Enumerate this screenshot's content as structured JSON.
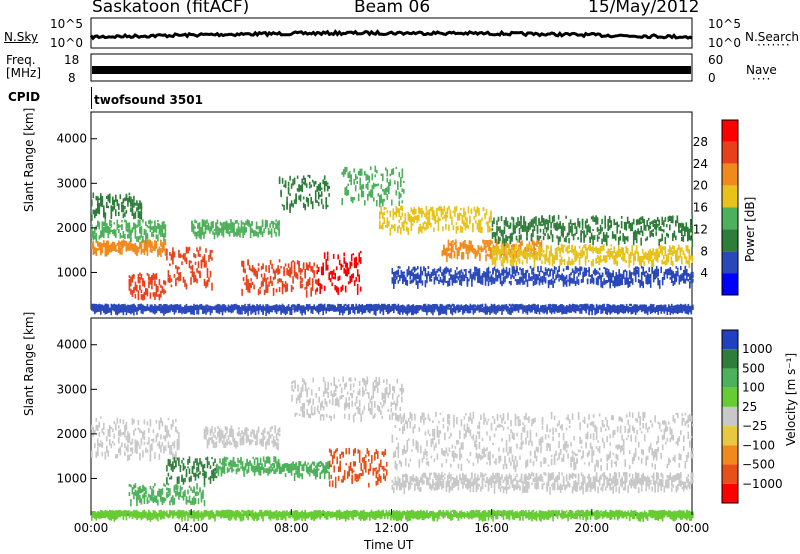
{
  "header": {
    "station": "Saskatoon (fitACF)",
    "beam": "Beam 06",
    "date": "15/May/2012"
  },
  "noise_panel": {
    "left_label": "N.Sky",
    "left_ticks": [
      "10^5",
      "10^0"
    ],
    "right_label": "N.Search",
    "right_ticks": [
      "10^5",
      "10^0"
    ]
  },
  "freq_panel": {
    "left_label_1": "Freq.",
    "left_label_2": "[MHz]",
    "left_ticks": [
      "18",
      "8"
    ],
    "right_label": "Nave",
    "right_ticks": [
      "60",
      "0"
    ]
  },
  "cpid": {
    "label": "CPID",
    "value": "twofsound 3501"
  },
  "chart_data": [
    {
      "type": "heatmap",
      "quantity": "Power",
      "ylabel": "Slant Range [km]",
      "ylim": [
        180,
        4600
      ],
      "yticks": [
        "1000",
        "2000",
        "3000",
        "4000"
      ],
      "xlabel": "Time UT",
      "xlim": [
        0,
        24
      ],
      "colorbar_label": "Power [dB]",
      "colorbar_ticks": [
        "4",
        "8",
        "12",
        "16",
        "20",
        "24",
        "28"
      ],
      "colorbar_range": [
        0,
        30
      ],
      "colors": [
        "#0000ff",
        "#2a48b8",
        "#2f7d3a",
        "#4db05a",
        "#e6c21a",
        "#f08a1c",
        "#e8401a",
        "#ff0000"
      ],
      "bands": [
        {
          "t0": 0.0,
          "t1": 3.0,
          "r0": 1500,
          "r1": 1750,
          "v": 20
        },
        {
          "t0": 0.0,
          "t1": 3.0,
          "r0": 1800,
          "r1": 2200,
          "v": 12
        },
        {
          "t0": 0.0,
          "t1": 2.0,
          "r0": 2300,
          "r1": 2800,
          "v": 10
        },
        {
          "t0": 1.5,
          "t1": 3.0,
          "r0": 500,
          "r1": 1000,
          "v": 26
        },
        {
          "t0": 3.0,
          "t1": 4.8,
          "r0": 700,
          "r1": 1600,
          "v": 26
        },
        {
          "t0": 4.0,
          "t1": 7.5,
          "r0": 1900,
          "r1": 2200,
          "v": 12
        },
        {
          "t0": 6.0,
          "t1": 9.0,
          "r0": 600,
          "r1": 1300,
          "v": 26
        },
        {
          "t0": 9.0,
          "t1": 10.8,
          "r0": 650,
          "r1": 1500,
          "v": 28
        },
        {
          "t0": 7.5,
          "t1": 9.5,
          "r0": 2500,
          "r1": 3200,
          "v": 10
        },
        {
          "t0": 10.0,
          "t1": 12.5,
          "r0": 2600,
          "r1": 3400,
          "v": 12
        },
        {
          "t0": 11.5,
          "t1": 16.0,
          "r0": 2000,
          "r1": 2500,
          "v": 16
        },
        {
          "t0": 14.0,
          "t1": 18.0,
          "r0": 1400,
          "r1": 1750,
          "v": 20
        },
        {
          "t0": 16.0,
          "t1": 24.0,
          "r0": 1250,
          "r1": 1650,
          "v": 18
        },
        {
          "t0": 16.0,
          "t1": 24.0,
          "r0": 1750,
          "r1": 2300,
          "v": 8
        },
        {
          "t0": 12.0,
          "t1": 24.0,
          "r0": 800,
          "r1": 1150,
          "v": 6
        },
        {
          "t0": 0.0,
          "t1": 24.0,
          "r0": 200,
          "r1": 300,
          "v": 4
        }
      ]
    },
    {
      "type": "heatmap",
      "quantity": "Velocity",
      "ylabel": "Slant Range [km]",
      "ylim": [
        180,
        4600
      ],
      "yticks": [
        "1000",
        "2000",
        "3000",
        "4000"
      ],
      "xlabel": "Time UT",
      "xticks": [
        "00:00",
        "04:00",
        "08:00",
        "12:00",
        "16:00",
        "20:00",
        "00:00"
      ],
      "xlim": [
        0,
        24
      ],
      "colorbar_label": "Velocity [m s⁻¹]",
      "colorbar_ticks": [
        "1000",
        "500",
        "100",
        "25",
        "−25",
        "−100",
        "−500",
        "−1000"
      ],
      "colors": [
        "#2040c0",
        "#2f7d3a",
        "#4db05a",
        "#66cc33",
        "#c8c8c8",
        "#e8c840",
        "#f08a1c",
        "#e8501a",
        "#ff0000"
      ],
      "bands": [
        {
          "t0": 0.0,
          "t1": 3.5,
          "r0": 1500,
          "r1": 2400,
          "v": "gs"
        },
        {
          "t0": 1.5,
          "t1": 4.5,
          "r0": 500,
          "r1": 900,
          "v": 100
        },
        {
          "t0": 3.0,
          "t1": 5.0,
          "r0": 1000,
          "r1": 1500,
          "v": 500
        },
        {
          "t0": 5.0,
          "t1": 7.5,
          "r0": 1200,
          "r1": 1500,
          "v": 100
        },
        {
          "t0": 7.5,
          "t1": 9.5,
          "r0": 1100,
          "r1": 1400,
          "v": 200
        },
        {
          "t0": 9.5,
          "t1": 11.8,
          "r0": 900,
          "r1": 1700,
          "v": -500
        },
        {
          "t0": 4.5,
          "t1": 7.5,
          "r0": 1800,
          "r1": 2200,
          "v": "gs"
        },
        {
          "t0": 8.0,
          "t1": 12.5,
          "r0": 2400,
          "r1": 3300,
          "v": "gs"
        },
        {
          "t0": 12.0,
          "t1": 24.0,
          "r0": 1300,
          "r1": 2500,
          "v": "gs"
        },
        {
          "t0": 12.0,
          "t1": 24.0,
          "r0": 800,
          "r1": 1150,
          "v": "gs"
        },
        {
          "t0": 0.0,
          "t1": 24.0,
          "r0": 200,
          "r1": 300,
          "v": 50
        }
      ]
    }
  ]
}
